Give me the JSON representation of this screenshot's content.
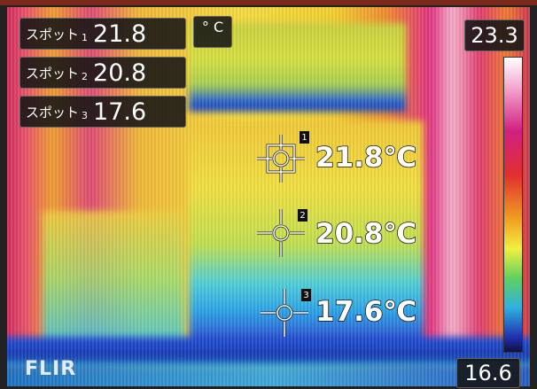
{
  "spot_panel": [
    {
      "label": "スポット",
      "index": 1,
      "value": 21.8
    },
    {
      "label": "スポット",
      "index": 2,
      "value": 20.8
    },
    {
      "label": "スポット",
      "index": 3,
      "value": 17.6
    }
  ],
  "unit": "° C",
  "scale": {
    "max": 23.3,
    "min": 16.6
  },
  "markers": [
    {
      "index": 1,
      "reading": "21.8℃"
    },
    {
      "index": 2,
      "reading": "20.8℃"
    },
    {
      "index": 3,
      "reading": "17.6℃"
    }
  ],
  "logo": "FLIR"
}
